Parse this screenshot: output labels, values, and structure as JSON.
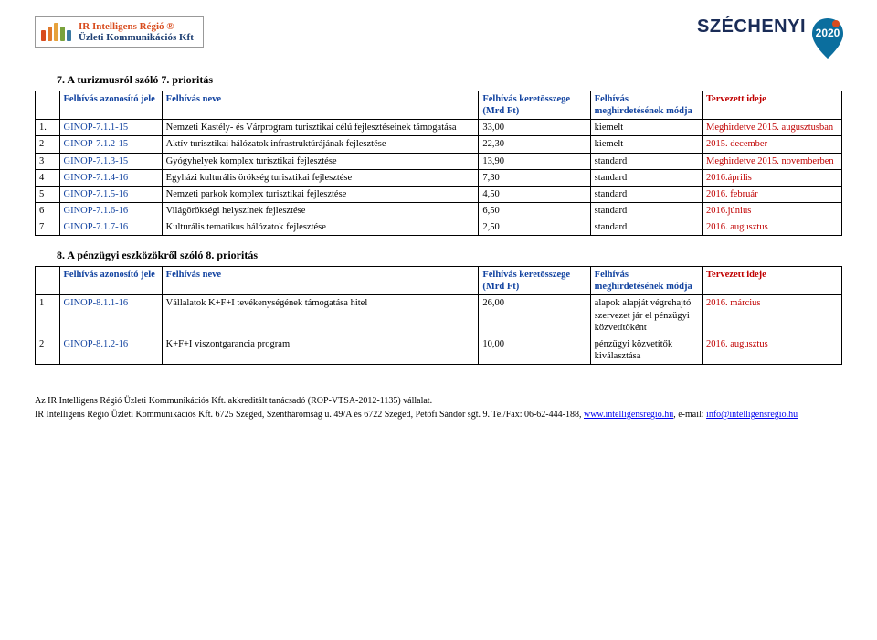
{
  "logo": {
    "line1": "IR Intelligens Régió ®",
    "line2": "Üzleti Kommunikációs Kft",
    "bar_colors": [
      "#d84c1e",
      "#e07a2c",
      "#e6a23c",
      "#7aa23c",
      "#3c7aa2"
    ],
    "bar_heights": [
      12,
      16,
      20,
      16,
      12
    ]
  },
  "szechenyi": {
    "label": "SZÉCHENYI",
    "year": "2020",
    "pin_color": "#0b6e9e",
    "dot_color": "#d84c1e"
  },
  "section7": {
    "title": "7. A turizmusról szóló 7. prioritás",
    "headers": [
      "",
      "Felhívás azonosító jele",
      "Felhívás neve",
      "Felhívás keretösszege (Mrd Ft)",
      "Felhívás meghirdetésének módja",
      "Tervezett ideje"
    ],
    "rows": [
      {
        "n": "1.",
        "id": "GINOP-7.1.1-15",
        "name": "Nemzeti Kastély- és Várprogram turisztikai célú fejlesztéseinek támogatása",
        "amt": "33,00",
        "mode": "kiemelt",
        "date": "Meghirdetve 2015. augusztusban"
      },
      {
        "n": "2",
        "id": "GINOP-7.1.2-15",
        "name": "Aktív turisztikai hálózatok infrastruktúrájának fejlesztése",
        "amt": "22,30",
        "mode": "kiemelt",
        "date": "2015. december"
      },
      {
        "n": "3",
        "id": "GINOP-7.1.3-15",
        "name": "Gyógyhelyek komplex turisztikai fejlesztése",
        "amt": "13,90",
        "mode": "standard",
        "date": "Meghirdetve 2015. novemberben"
      },
      {
        "n": "4",
        "id": "GINOP-7.1.4-16",
        "name": "Egyházi kulturális örökség turisztikai fejlesztése",
        "amt": "7,30",
        "mode": "standard",
        "date": "2016.április"
      },
      {
        "n": "5",
        "id": "GINOP-7.1.5-16",
        "name": "Nemzeti parkok komplex turisztikai fejlesztése",
        "amt": "4,50",
        "mode": "standard",
        "date": "2016. február"
      },
      {
        "n": "6",
        "id": "GINOP-7.1.6-16",
        "name": "Világörökségi helyszínek fejlesztése",
        "amt": "6,50",
        "mode": "standard",
        "date": "2016.június"
      },
      {
        "n": "7",
        "id": "GINOP-7.1.7-16",
        "name": "Kulturális tematikus hálózatok fejlesztése",
        "amt": "2,50",
        "mode": "standard",
        "date": "2016. augusztus"
      }
    ]
  },
  "section8": {
    "title": "8. A pénzügyi eszközökről szóló 8. prioritás",
    "headers": [
      "",
      "Felhívás azonosító jele",
      "Felhívás neve",
      "Felhívás keretösszege (Mrd Ft)",
      "Felhívás meghirdetésének módja",
      "Tervezett ideje"
    ],
    "rows": [
      {
        "n": "1",
        "id": "GINOP-8.1.1-16",
        "name": "Vállalatok K+F+I tevékenységének támogatása hitel",
        "amt": "26,00",
        "mode": "alapok alapját végrehajtó szervezet jár el pénzügyi közvetítőként",
        "date": "2016. március"
      },
      {
        "n": "2",
        "id": "GINOP-8.1.2-16",
        "name": "K+F+I viszontgarancia program",
        "amt": "10,00",
        "mode": "pénzügyi közvetítők kiválasztása",
        "date": "2016. augusztus"
      }
    ]
  },
  "footer": {
    "line1": "Az IR Intelligens Régió Üzleti Kommunikációs Kft. akkreditált tanácsadó (ROP-VTSA-2012-1135) vállalat.",
    "line2_a": "IR Intelligens Régió Üzleti Kommunikációs Kft. 6725 Szeged, Szentháromság u. 49/A és 6722 Szeged, Petőfi Sándor sgt. 9. Tel/Fax: 06-62-444-188, ",
    "link1": "www.intelligensregio.hu",
    "line2_b": ", e-mail: ",
    "link2": "info@intelligensregio.hu"
  },
  "colors": {
    "header_text": "#1243a0",
    "red_text": "#c00000",
    "border": "#000000",
    "body_text": "#000000"
  }
}
